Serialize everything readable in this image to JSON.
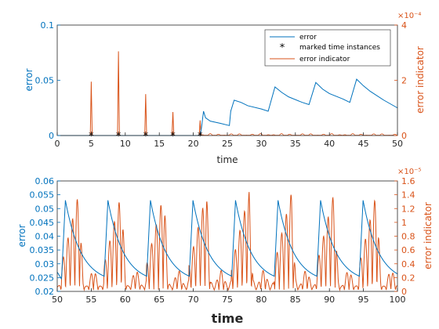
{
  "colors": {
    "error": "#0072BD",
    "indicator": "#D95319",
    "axis": "#262626",
    "marker": "#000000"
  },
  "chart_data": [
    {
      "type": "line",
      "title": "",
      "xlabel": "time",
      "ylabel": "error",
      "ylabel_right": "error indicator",
      "right_exponent": "×10⁻⁴",
      "xlim": [
        0,
        50
      ],
      "ylim": [
        0,
        0.1
      ],
      "ylim_right": [
        0,
        4
      ],
      "x_ticks": [
        "0",
        "5",
        "10",
        "15",
        "20",
        "25",
        "30",
        "35",
        "40",
        "45",
        "50"
      ],
      "y_ticks": [
        "0",
        "0.05",
        "0.1"
      ],
      "y_ticks_right": [
        "0",
        "2",
        "4"
      ],
      "grid": false,
      "legend_position": "top-right",
      "legend": [
        "error",
        "marked time instances",
        "error indicator"
      ],
      "series": [
        {
          "name": "error",
          "axis": "left",
          "x": [
            0,
            21.0,
            21.2,
            21.5,
            21.8,
            22.5,
            24,
            25.3,
            25.5,
            26,
            27,
            28,
            30,
            31,
            32,
            33,
            34,
            36,
            37,
            38,
            39,
            40,
            42,
            43,
            44,
            45,
            46,
            48,
            50
          ],
          "y": [
            0,
            0,
            0.007,
            0.022,
            0.016,
            0.013,
            0.011,
            0.009,
            0.022,
            0.032,
            0.03,
            0.027,
            0.024,
            0.022,
            0.044,
            0.039,
            0.035,
            0.03,
            0.028,
            0.048,
            0.042,
            0.038,
            0.033,
            0.03,
            0.051,
            0.045,
            0.04,
            0.032,
            0.025
          ]
        },
        {
          "name": "marked time instances",
          "axis": "left",
          "x": [
            5,
            9,
            13,
            17,
            21
          ],
          "y": [
            0,
            0,
            0,
            0,
            0
          ]
        },
        {
          "name": "error indicator",
          "axis": "right",
          "spikes": [
            {
              "x": 5.0,
              "y": 1.95
            },
            {
              "x": 9.0,
              "y": 3.05
            },
            {
              "x": 13.0,
              "y": 1.5
            },
            {
              "x": 17.0,
              "y": 0.85
            },
            {
              "x": 21.0,
              "y": 0.55
            }
          ]
        }
      ]
    },
    {
      "type": "line",
      "title": "",
      "xlabel": "time",
      "ylabel": "error",
      "ylabel_right": "error indicator",
      "right_exponent": "×10⁻⁵",
      "xlim": [
        50,
        100
      ],
      "ylim": [
        0.02,
        0.06
      ],
      "ylim_right": [
        0,
        1.6
      ],
      "x_ticks": [
        "50",
        "55",
        "60",
        "65",
        "70",
        "75",
        "80",
        "85",
        "90",
        "95",
        "100"
      ],
      "y_ticks": [
        "0.02",
        "0.025",
        "0.03",
        "0.035",
        "0.04",
        "0.045",
        "0.05",
        "0.055",
        "0.06"
      ],
      "y_ticks_right": [
        "0",
        "0.2",
        "0.4",
        "0.6",
        "0.8",
        "1",
        "1.2",
        "1.4",
        "1.6"
      ],
      "grid": false,
      "series": [
        {
          "name": "error",
          "axis": "left",
          "period": 6.25,
          "first_jump": 50.6,
          "peak": 0.053,
          "trough": 0.023,
          "start_value": 0.027
        },
        {
          "name": "error indicator",
          "axis": "right",
          "period": 6.25,
          "first_jump": 50.6,
          "peak": 1.42
        }
      ]
    }
  ]
}
